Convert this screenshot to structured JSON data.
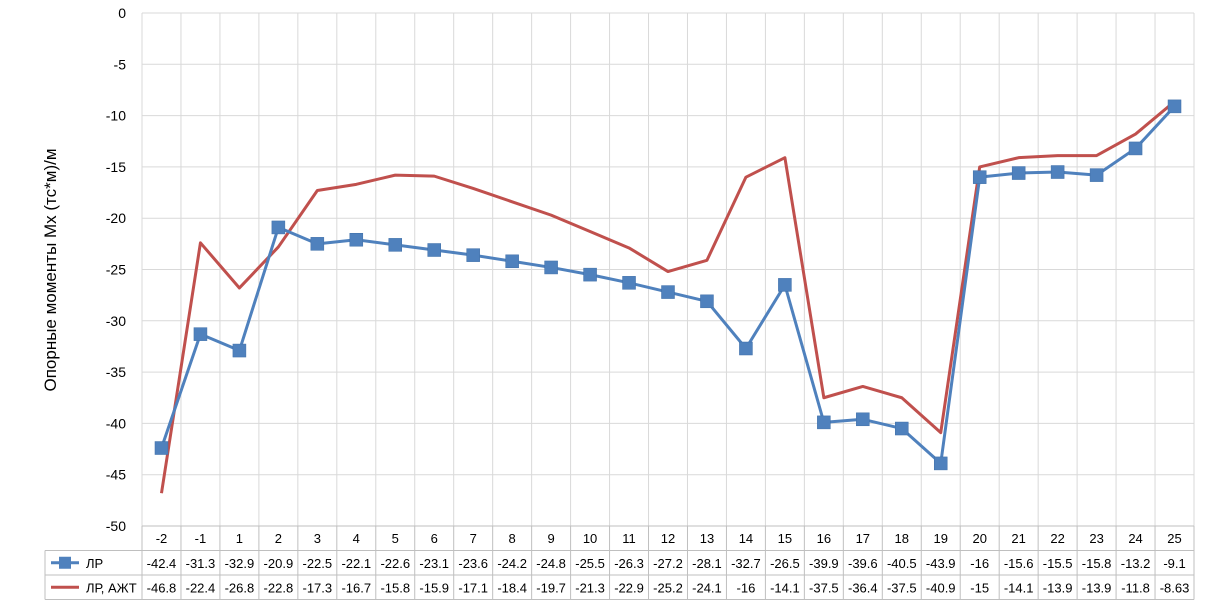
{
  "chart_data": {
    "type": "line",
    "ylabel": "Опорные моменты Mx (тс*м)/м",
    "ylim": [
      -50,
      0
    ],
    "y_ticks": [
      0,
      -5,
      -10,
      -15,
      -20,
      -25,
      -30,
      -35,
      -40,
      -45,
      -50
    ],
    "grid": true,
    "legend": "data-table",
    "categories": [
      "-2",
      "-1",
      "1",
      "2",
      "3",
      "4",
      "5",
      "6",
      "7",
      "8",
      "9",
      "10",
      "11",
      "12",
      "13",
      "14",
      "15",
      "16",
      "17",
      "18",
      "19",
      "20",
      "21",
      "22",
      "23",
      "24",
      "25"
    ],
    "series": [
      {
        "name": "ЛР",
        "color": "#4F81BD",
        "marker": "square",
        "values": [
          -42.4,
          -31.3,
          -32.9,
          -20.9,
          -22.5,
          -22.1,
          -22.6,
          -23.1,
          -23.6,
          -24.2,
          -24.8,
          -25.5,
          -26.3,
          -27.2,
          -28.1,
          -32.7,
          -26.5,
          -39.9,
          -39.6,
          -40.5,
          -43.9,
          -16,
          -15.6,
          -15.5,
          -15.8,
          -13.2,
          -9.1
        ],
        "labels": [
          "-42.4",
          "-31.3",
          "-32.9",
          "-20.9",
          "-22.5",
          "-22.1",
          "-22.6",
          "-23.1",
          "-23.6",
          "-24.2",
          "-24.8",
          "-25.5",
          "-26.3",
          "-27.2",
          "-28.1",
          "-32.7",
          "-26.5",
          "-39.9",
          "-39.6",
          "-40.5",
          "-43.9",
          "-16",
          "-15.6",
          "-15.5",
          "-15.8",
          "-13.2",
          "-9.1"
        ]
      },
      {
        "name": "ЛР, АЖТ",
        "color": "#C0504D",
        "marker": "none",
        "values": [
          -46.8,
          -22.4,
          -26.8,
          -22.8,
          -17.3,
          -16.7,
          -15.8,
          -15.9,
          -17.1,
          -18.4,
          -19.7,
          -21.3,
          -22.9,
          -25.2,
          -24.1,
          -16,
          -14.1,
          -37.5,
          -36.4,
          -37.5,
          -40.9,
          -15,
          -14.1,
          -13.9,
          -13.9,
          -11.8,
          -8.63
        ],
        "labels": [
          "-46.8",
          "-22.4",
          "-26.8",
          "-22.8",
          "-17.3",
          "-16.7",
          "-15.8",
          "-15.9",
          "-17.1",
          "-18.4",
          "-19.7",
          "-21.3",
          "-22.9",
          "-25.2",
          "-24.1",
          "-16",
          "-14.1",
          "-37.5",
          "-36.4",
          "-37.5",
          "-40.9",
          "-15",
          "-14.1",
          "-13.9",
          "-13.9",
          "-11.8",
          "-8.63"
        ]
      }
    ]
  }
}
